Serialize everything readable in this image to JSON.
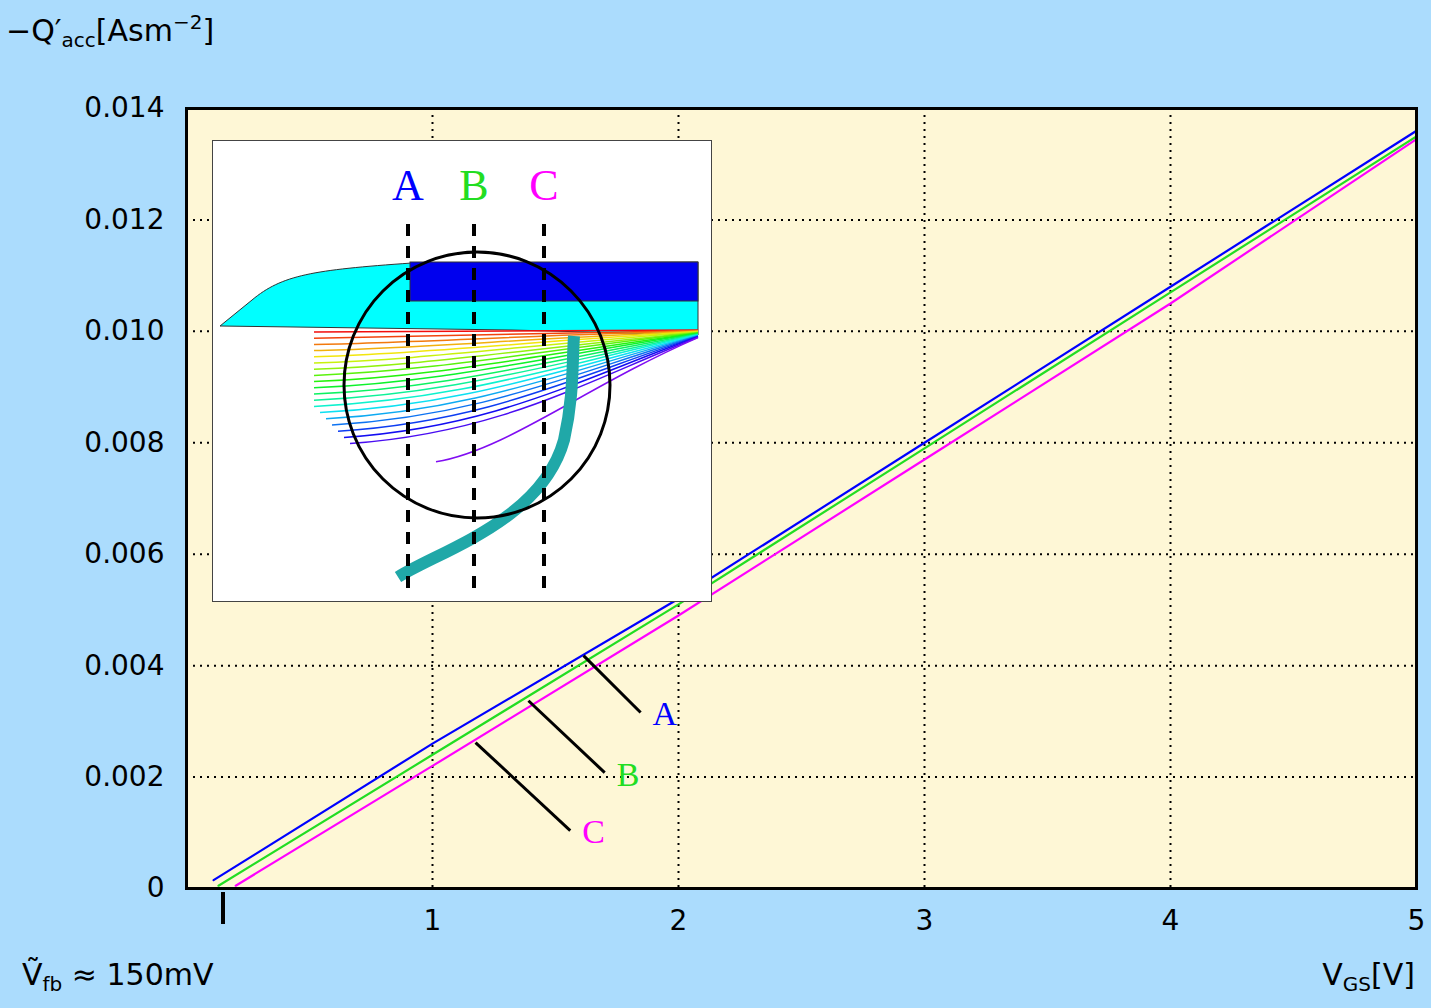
{
  "chart_data": {
    "type": "line",
    "xlabel": [
      "V",
      {
        "sub": "GS"
      },
      "[V]"
    ],
    "ylabel": [
      "−Q′",
      {
        "sub": "acc"
      },
      "[Asm",
      {
        "sup": "−2"
      },
      "]"
    ],
    "xlim": [
      0,
      5
    ],
    "xticks": [
      1,
      2,
      3,
      4,
      5
    ],
    "ylim": [
      0,
      0.014
    ],
    "yticks": [
      0,
      0.002,
      0.004,
      0.006,
      0.008,
      {
        "value": 0.01,
        "label": "0.010"
      },
      0.012,
      0.014
    ],
    "grid": true,
    "series": [
      {
        "name": "A",
        "color": "#0000ff",
        "x": [
          0.11,
          1,
          2,
          3,
          4,
          5
        ],
        "values": [
          0.00015,
          0.0026,
          0.0052,
          0.008,
          0.0108,
          0.0136
        ]
      },
      {
        "name": "B",
        "color": "#22dd22",
        "x": [
          0.13,
          1,
          2,
          3,
          4,
          5
        ],
        "values": [
          5e-05,
          0.0024,
          0.0051,
          0.0079,
          0.0107,
          0.0135
        ]
      },
      {
        "name": "C",
        "color": "#ff00ff",
        "x": [
          0.2,
          1,
          2,
          3,
          4,
          5
        ],
        "values": [
          5e-05,
          0.0022,
          0.0049,
          0.0077,
          0.0105,
          0.01345
        ]
      }
    ],
    "annotations": [
      {
        "text": "A",
        "color": "#0000ff",
        "x": 1.846,
        "y": 0.00316,
        "from": [
          1.614,
          0.00418
        ]
      },
      {
        "text": "B",
        "color": "#22dd22",
        "x": 1.7,
        "y": 0.00208,
        "from": [
          1.39,
          0.00337
        ]
      },
      {
        "text": "C",
        "color": "#ff00ff",
        "x": 1.56,
        "y": 0.00104,
        "from": [
          1.175,
          0.00262
        ]
      },
      {
        "text": [
          "Ṽ",
          {
            "sub": "fb"
          },
          " ≈ 150mV"
        ],
        "x": 0.15
      }
    ],
    "inset_labels": [
      "A",
      "B",
      "C"
    ]
  }
}
